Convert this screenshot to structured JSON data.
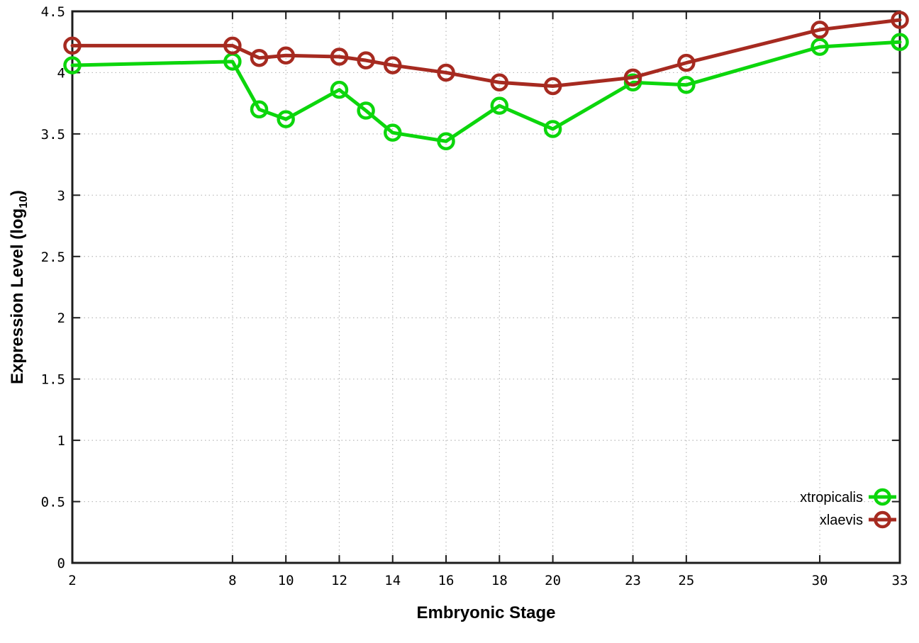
{
  "page": {
    "background_color": "#ffffff"
  },
  "chart_data": {
    "type": "line",
    "title": "",
    "xlabel": "Embryonic Stage",
    "ylabel": "Expression Level (log10)",
    "ylabel_parts": {
      "pre": "Expression Level (log",
      "sub": "10",
      "post": ")"
    },
    "xlim": [
      2,
      33
    ],
    "ylim": [
      0,
      4.5
    ],
    "grid": true,
    "grid_style": "dotted",
    "legend_position": "inside-right-lower",
    "x_ticks": [
      {
        "value": 2,
        "label": "2"
      },
      {
        "value": 8,
        "label": "8"
      },
      {
        "value": 10,
        "label": "10"
      },
      {
        "value": 12,
        "label": "12"
      },
      {
        "value": 14,
        "label": "14"
      },
      {
        "value": 16,
        "label": "16"
      },
      {
        "value": 18,
        "label": "18"
      },
      {
        "value": 20,
        "label": "20"
      },
      {
        "value": 23,
        "label": "23"
      },
      {
        "value": 25,
        "label": "25"
      },
      {
        "value": 30,
        "label": "30"
      },
      {
        "value": 33,
        "label": "33"
      }
    ],
    "y_ticks": [
      {
        "value": 0,
        "label": "0"
      },
      {
        "value": 0.5,
        "label": "0.5"
      },
      {
        "value": 1,
        "label": "1"
      },
      {
        "value": 1.5,
        "label": "1.5"
      },
      {
        "value": 2,
        "label": "2"
      },
      {
        "value": 2.5,
        "label": "2.5"
      },
      {
        "value": 3,
        "label": "3"
      },
      {
        "value": 3.5,
        "label": "3.5"
      },
      {
        "value": 4,
        "label": "4"
      },
      {
        "value": 4.5,
        "label": "4.5"
      }
    ],
    "x": [
      2,
      8,
      9,
      10,
      12,
      13,
      14,
      16,
      18,
      20,
      23,
      25,
      30,
      33
    ],
    "series": [
      {
        "name": "xtropicalis",
        "color": "#0cd60c",
        "marker": "open-circle",
        "values": [
          4.06,
          4.09,
          3.7,
          3.62,
          3.86,
          3.69,
          3.51,
          3.44,
          3.73,
          3.54,
          3.92,
          3.9,
          4.21,
          4.25
        ]
      },
      {
        "name": "xlaevis",
        "color": "#a62a20",
        "marker": "open-circle",
        "values": [
          4.22,
          4.22,
          4.12,
          4.14,
          4.13,
          4.1,
          4.06,
          4.0,
          3.92,
          3.89,
          3.96,
          4.08,
          4.35,
          4.43
        ]
      }
    ],
    "colors": {
      "axis": "#1c1c1c",
      "grid": "#b8b8b8",
      "tick_label": "#000000"
    }
  }
}
